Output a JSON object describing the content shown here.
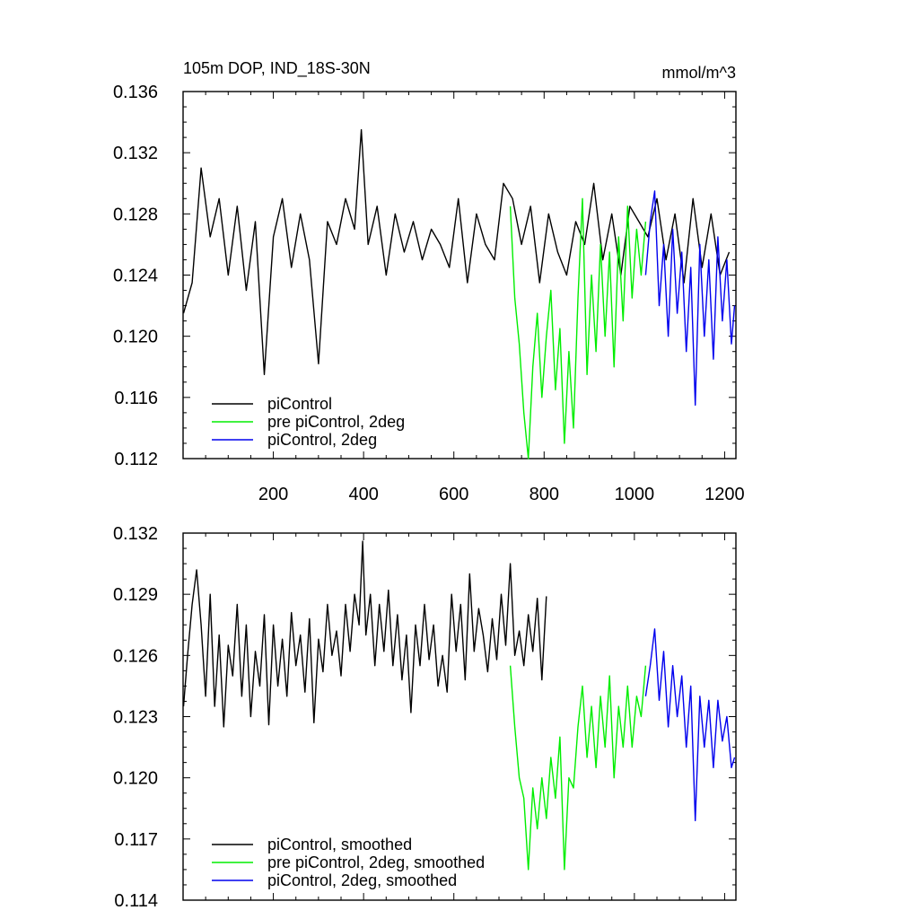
{
  "chart_data": [
    {
      "type": "line",
      "title": "105m DOP, IND_18S-30N",
      "units": "mmol/m^3",
      "xlim": [
        0,
        1225
      ],
      "ylim": [
        0.112,
        0.136
      ],
      "xticks": [
        200,
        400,
        600,
        800,
        1000,
        1200
      ],
      "xtick_labels": [
        "200",
        "400",
        "600",
        "800",
        "1000",
        "1200"
      ],
      "yticks": [
        0.112,
        0.116,
        0.12,
        0.124,
        0.128,
        0.132,
        0.136
      ],
      "ytick_labels": [
        "0.112",
        "0.116",
        "0.120",
        "0.124",
        "0.128",
        "0.132",
        "0.136"
      ],
      "legend_position": "bottom-left",
      "series": [
        {
          "name": "piControl",
          "color": "#000000",
          "x": [
            1,
            20,
            40,
            60,
            80,
            100,
            120,
            140,
            160,
            180,
            200,
            220,
            240,
            260,
            280,
            300,
            320,
            340,
            360,
            380,
            395,
            410,
            430,
            450,
            470,
            490,
            510,
            530,
            550,
            570,
            590,
            610,
            630,
            650,
            670,
            690,
            710,
            730,
            750,
            770,
            790,
            810,
            830,
            850,
            870,
            890,
            910,
            930,
            950,
            970,
            990,
            1010,
            1030,
            1050,
            1070,
            1090,
            1110,
            1130,
            1150,
            1170,
            1190,
            1210
          ],
          "y": [
            0.1215,
            0.1235,
            0.131,
            0.1265,
            0.129,
            0.124,
            0.1285,
            0.123,
            0.1275,
            0.1175,
            0.1265,
            0.129,
            0.1245,
            0.128,
            0.125,
            0.1182,
            0.1275,
            0.126,
            0.129,
            0.127,
            0.1335,
            0.126,
            0.1285,
            0.124,
            0.128,
            0.1255,
            0.1275,
            0.125,
            0.127,
            0.126,
            0.1245,
            0.129,
            0.1235,
            0.128,
            0.126,
            0.125,
            0.13,
            0.129,
            0.126,
            0.1285,
            0.1235,
            0.128,
            0.1255,
            0.124,
            0.1275,
            0.126,
            0.13,
            0.125,
            0.128,
            0.124,
            0.1285,
            0.1275,
            0.1265,
            0.129,
            0.125,
            0.128,
            0.1235,
            0.129,
            0.1245,
            0.128,
            0.124,
            0.1255
          ]
        },
        {
          "name": "pre piControl, 2deg",
          "color": "#00ee00",
          "x": [
            725,
            735,
            745,
            755,
            765,
            775,
            785,
            795,
            805,
            815,
            825,
            835,
            845,
            855,
            865,
            875,
            885,
            895,
            905,
            915,
            925,
            935,
            945,
            955,
            965,
            975,
            985,
            995,
            1005,
            1015,
            1025
          ],
          "y": [
            0.1285,
            0.1225,
            0.1195,
            0.115,
            0.112,
            0.118,
            0.1215,
            0.116,
            0.12,
            0.123,
            0.1165,
            0.1205,
            0.113,
            0.119,
            0.114,
            0.1225,
            0.129,
            0.1175,
            0.124,
            0.119,
            0.126,
            0.12,
            0.1255,
            0.118,
            0.1265,
            0.121,
            0.1285,
            0.1225,
            0.127,
            0.124,
            0.1275
          ]
        },
        {
          "name": "piControl, 2deg",
          "color": "#0000ee",
          "x": [
            1025,
            1035,
            1045,
            1055,
            1065,
            1075,
            1085,
            1095,
            1105,
            1115,
            1125,
            1135,
            1145,
            1155,
            1165,
            1175,
            1185,
            1195,
            1205,
            1215,
            1222
          ],
          "y": [
            0.124,
            0.1275,
            0.1295,
            0.122,
            0.126,
            0.12,
            0.127,
            0.1215,
            0.1255,
            0.119,
            0.1245,
            0.1155,
            0.126,
            0.12,
            0.125,
            0.1185,
            0.1265,
            0.121,
            0.125,
            0.1195,
            0.122
          ]
        }
      ]
    },
    {
      "type": "line",
      "xlim": [
        0,
        1225
      ],
      "ylim": [
        0.114,
        0.132
      ],
      "xticks": [
        200,
        400,
        600,
        800,
        1000,
        1200
      ],
      "yticks": [
        0.114,
        0.117,
        0.12,
        0.123,
        0.126,
        0.129,
        0.132
      ],
      "ytick_labels": [
        "0.114",
        "0.117",
        "0.120",
        "0.123",
        "0.126",
        "0.129",
        "0.132"
      ],
      "legend_position": "bottom-left",
      "series": [
        {
          "name": "piControl, smoothed",
          "color": "#000000",
          "x": [
            1,
            10,
            20,
            30,
            40,
            50,
            60,
            70,
            80,
            90,
            100,
            110,
            120,
            130,
            140,
            150,
            160,
            170,
            180,
            190,
            200,
            210,
            220,
            230,
            240,
            250,
            260,
            270,
            280,
            290,
            300,
            310,
            320,
            330,
            340,
            350,
            360,
            370,
            380,
            390,
            398,
            405,
            415,
            425,
            435,
            445,
            455,
            465,
            475,
            485,
            495,
            505,
            515,
            525,
            535,
            545,
            555,
            565,
            575,
            585,
            595,
            605,
            615,
            625,
            635,
            645,
            655,
            665,
            675,
            685,
            695,
            705,
            715,
            725,
            735,
            745,
            755,
            765,
            775,
            785,
            795,
            805
          ],
          "y": [
            0.1235,
            0.126,
            0.1285,
            0.1302,
            0.1275,
            0.124,
            0.129,
            0.1235,
            0.127,
            0.1225,
            0.1265,
            0.125,
            0.1285,
            0.124,
            0.1275,
            0.123,
            0.1262,
            0.1245,
            0.128,
            0.1226,
            0.1275,
            0.1245,
            0.1268,
            0.124,
            0.1281,
            0.1255,
            0.127,
            0.1242,
            0.1278,
            0.1227,
            0.1268,
            0.1252,
            0.1285,
            0.126,
            0.1272,
            0.125,
            0.1285,
            0.1262,
            0.129,
            0.1275,
            0.1316,
            0.127,
            0.129,
            0.1255,
            0.1285,
            0.1262,
            0.1292,
            0.1255,
            0.128,
            0.1248,
            0.127,
            0.1232,
            0.1275,
            0.1255,
            0.1285,
            0.1258,
            0.1275,
            0.1245,
            0.126,
            0.1242,
            0.129,
            0.1262,
            0.1285,
            0.1248,
            0.13,
            0.1262,
            0.1283,
            0.127,
            0.1252,
            0.1278,
            0.1258,
            0.129,
            0.1265,
            0.1305,
            0.126,
            0.1272,
            0.1255,
            0.128,
            0.1262,
            0.1288,
            0.1248,
            0.1289
          ]
        },
        {
          "name": "pre piControl, 2deg, smoothed",
          "color": "#00ee00",
          "x": [
            725,
            735,
            745,
            755,
            765,
            775,
            785,
            795,
            805,
            815,
            825,
            835,
            845,
            855,
            865,
            875,
            885,
            895,
            905,
            915,
            925,
            935,
            945,
            955,
            965,
            975,
            985,
            995,
            1005,
            1015,
            1025
          ],
          "y": [
            0.1255,
            0.1225,
            0.12,
            0.119,
            0.1155,
            0.1195,
            0.1175,
            0.12,
            0.118,
            0.121,
            0.119,
            0.122,
            0.1155,
            0.12,
            0.1195,
            0.1225,
            0.1245,
            0.121,
            0.1235,
            0.1205,
            0.124,
            0.1215,
            0.125,
            0.12,
            0.1235,
            0.1215,
            0.1245,
            0.1215,
            0.124,
            0.123,
            0.1255
          ]
        },
        {
          "name": "piControl, 2deg, smoothed",
          "color": "#0000ee",
          "x": [
            1025,
            1035,
            1045,
            1055,
            1065,
            1075,
            1085,
            1095,
            1105,
            1115,
            1125,
            1135,
            1145,
            1155,
            1165,
            1175,
            1185,
            1195,
            1205,
            1215,
            1222
          ],
          "y": [
            0.124,
            0.1255,
            0.1273,
            0.1238,
            0.1262,
            0.1225,
            0.1255,
            0.123,
            0.125,
            0.1215,
            0.1245,
            0.1179,
            0.124,
            0.1215,
            0.1238,
            0.1205,
            0.1238,
            0.1218,
            0.123,
            0.1205,
            0.121
          ]
        }
      ]
    }
  ]
}
